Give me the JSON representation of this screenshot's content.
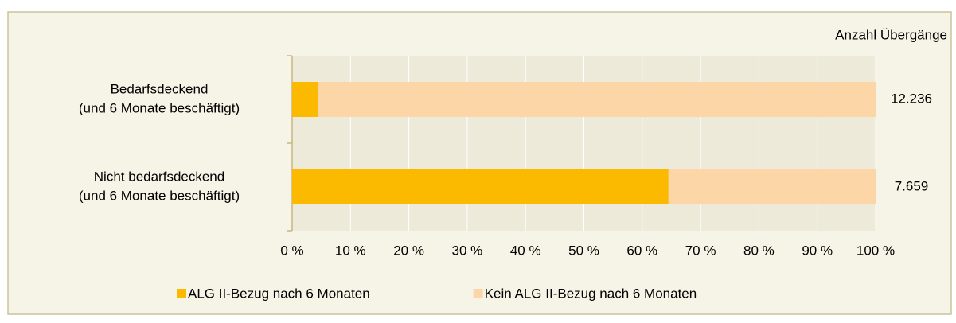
{
  "chart_data": {
    "type": "stacked-barh",
    "categories": [
      [
        "Bedarfsdeckend",
        "(und 6 Monate beschäftigt)"
      ],
      [
        "Nicht bedarfsdeckend",
        "(und 6 Monate beschäftigt)"
      ]
    ],
    "series": [
      {
        "name": "ALG II-Bezug nach 6 Monaten",
        "color": "#fbb900",
        "values": [
          4.4,
          64.5
        ]
      },
      {
        "name": "Kein ALG II-Bezug nach 6 Monaten",
        "color": "#fdd6a8",
        "values": [
          95.6,
          35.5
        ]
      }
    ],
    "xlim": [
      0,
      100
    ],
    "xticks": [
      {
        "value": 0,
        "label": "0 %"
      },
      {
        "value": 10,
        "label": "10 %"
      },
      {
        "value": 20,
        "label": "20 %"
      },
      {
        "value": 30,
        "label": "30 %"
      },
      {
        "value": 40,
        "label": "40 %"
      },
      {
        "value": 50,
        "label": "50 %"
      },
      {
        "value": 60,
        "label": "60 %"
      },
      {
        "value": 70,
        "label": "70 %"
      },
      {
        "value": 80,
        "label": "80 %"
      },
      {
        "value": 90,
        "label": "90 %"
      },
      {
        "value": 100,
        "label": "100 %"
      }
    ],
    "grid": true,
    "counts_title": "Anzahl Übergänge",
    "counts": [
      "12.236",
      "7.659"
    ],
    "legend": "bottom"
  }
}
